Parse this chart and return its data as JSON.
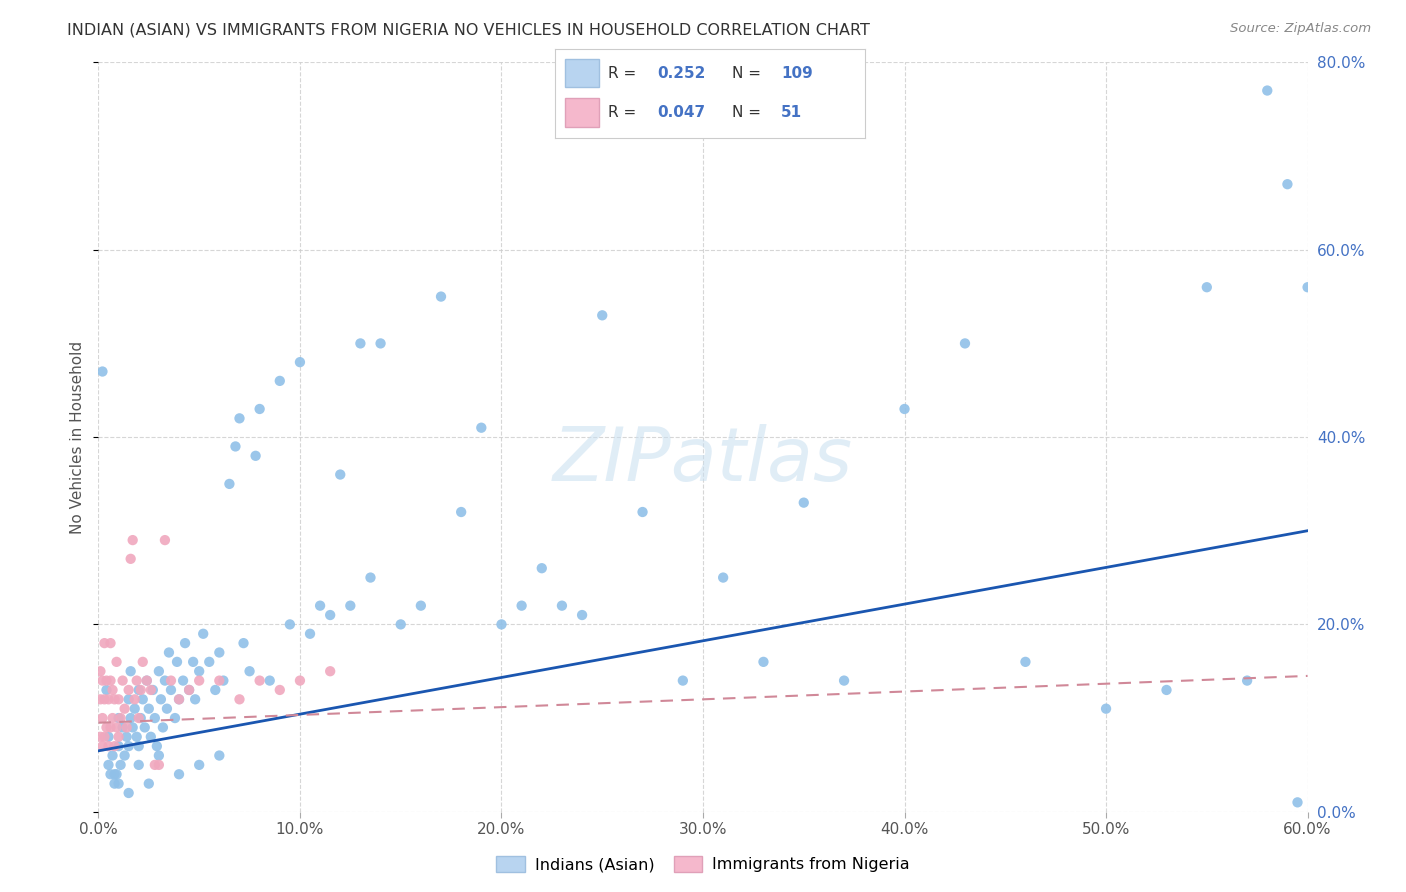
{
  "title": "INDIAN (ASIAN) VS IMMIGRANTS FROM NIGERIA NO VEHICLES IN HOUSEHOLD CORRELATION CHART",
  "source": "Source: ZipAtlas.com",
  "ylabel_label": "No Vehicles in Household",
  "watermark": "ZIPatlas",
  "xlim": [
    0.0,
    0.6
  ],
  "ylim": [
    0.0,
    0.8
  ],
  "xticks": [
    0.0,
    0.1,
    0.2,
    0.3,
    0.4,
    0.5,
    0.6
  ],
  "xtick_labels": [
    "0.0%",
    "10.0%",
    "20.0%",
    "30.0%",
    "40.0%",
    "50.0%",
    "60.0%"
  ],
  "yticks": [
    0.0,
    0.2,
    0.4,
    0.6,
    0.8
  ],
  "ytick_labels": [
    "0.0%",
    "20.0%",
    "40.0%",
    "60.0%",
    "80.0%"
  ],
  "scatter_blue_color": "#90c0e8",
  "scatter_pink_color": "#f0a8be",
  "line_blue_color": "#1a56b0",
  "line_pink_color": "#d08898",
  "legend_blue_fill": "#b8d4f0",
  "legend_pink_fill": "#f5b8cc",
  "blue_R": "0.252",
  "blue_N": "109",
  "pink_R": "0.047",
  "pink_N": "51",
  "blue_label": "Indians (Asian)",
  "pink_label": "Immigrants from Nigeria",
  "blue_line": [
    0.0,
    0.6,
    0.065,
    0.3
  ],
  "pink_line": [
    0.0,
    0.6,
    0.095,
    0.145
  ],
  "background_color": "#ffffff",
  "grid_color": "#cccccc",
  "blue_x": [
    0.005,
    0.005,
    0.007,
    0.008,
    0.009,
    0.01,
    0.01,
    0.011,
    0.012,
    0.013,
    0.014,
    0.015,
    0.015,
    0.016,
    0.016,
    0.017,
    0.018,
    0.019,
    0.02,
    0.02,
    0.021,
    0.022,
    0.023,
    0.024,
    0.025,
    0.026,
    0.027,
    0.028,
    0.029,
    0.03,
    0.031,
    0.032,
    0.033,
    0.034,
    0.035,
    0.036,
    0.038,
    0.039,
    0.04,
    0.042,
    0.043,
    0.045,
    0.047,
    0.048,
    0.05,
    0.052,
    0.055,
    0.058,
    0.06,
    0.062,
    0.065,
    0.068,
    0.07,
    0.072,
    0.075,
    0.078,
    0.08,
    0.085,
    0.09,
    0.095,
    0.1,
    0.105,
    0.11,
    0.115,
    0.12,
    0.125,
    0.13,
    0.135,
    0.14,
    0.15,
    0.16,
    0.17,
    0.18,
    0.19,
    0.2,
    0.21,
    0.22,
    0.23,
    0.24,
    0.25,
    0.27,
    0.29,
    0.31,
    0.33,
    0.35,
    0.37,
    0.4,
    0.43,
    0.46,
    0.5,
    0.53,
    0.55,
    0.57,
    0.58,
    0.59,
    0.595,
    0.6,
    0.002,
    0.004,
    0.006,
    0.008,
    0.01,
    0.015,
    0.02,
    0.025,
    0.03,
    0.04,
    0.05,
    0.06
  ],
  "blue_y": [
    0.05,
    0.08,
    0.06,
    0.03,
    0.04,
    0.07,
    0.1,
    0.05,
    0.09,
    0.06,
    0.08,
    0.12,
    0.07,
    0.1,
    0.15,
    0.09,
    0.11,
    0.08,
    0.13,
    0.07,
    0.1,
    0.12,
    0.09,
    0.14,
    0.11,
    0.08,
    0.13,
    0.1,
    0.07,
    0.15,
    0.12,
    0.09,
    0.14,
    0.11,
    0.17,
    0.13,
    0.1,
    0.16,
    0.12,
    0.14,
    0.18,
    0.13,
    0.16,
    0.12,
    0.15,
    0.19,
    0.16,
    0.13,
    0.17,
    0.14,
    0.35,
    0.39,
    0.42,
    0.18,
    0.15,
    0.38,
    0.43,
    0.14,
    0.46,
    0.2,
    0.48,
    0.19,
    0.22,
    0.21,
    0.36,
    0.22,
    0.5,
    0.25,
    0.5,
    0.2,
    0.22,
    0.55,
    0.32,
    0.41,
    0.2,
    0.22,
    0.26,
    0.22,
    0.21,
    0.53,
    0.32,
    0.14,
    0.25,
    0.16,
    0.33,
    0.14,
    0.43,
    0.5,
    0.16,
    0.11,
    0.13,
    0.56,
    0.14,
    0.77,
    0.67,
    0.01,
    0.56,
    0.47,
    0.13,
    0.04,
    0.04,
    0.03,
    0.02,
    0.05,
    0.03,
    0.06,
    0.04,
    0.05,
    0.06
  ],
  "pink_x": [
    0.001,
    0.001,
    0.001,
    0.002,
    0.002,
    0.002,
    0.003,
    0.003,
    0.003,
    0.004,
    0.004,
    0.005,
    0.005,
    0.006,
    0.006,
    0.006,
    0.007,
    0.007,
    0.008,
    0.008,
    0.009,
    0.009,
    0.01,
    0.01,
    0.011,
    0.012,
    0.013,
    0.014,
    0.015,
    0.016,
    0.017,
    0.018,
    0.019,
    0.02,
    0.021,
    0.022,
    0.024,
    0.026,
    0.028,
    0.03,
    0.033,
    0.036,
    0.04,
    0.045,
    0.05,
    0.06,
    0.07,
    0.08,
    0.09,
    0.1,
    0.115
  ],
  "pink_y": [
    0.08,
    0.12,
    0.15,
    0.07,
    0.1,
    0.14,
    0.08,
    0.12,
    0.18,
    0.09,
    0.14,
    0.07,
    0.12,
    0.09,
    0.14,
    0.18,
    0.1,
    0.13,
    0.07,
    0.12,
    0.09,
    0.16,
    0.08,
    0.12,
    0.1,
    0.14,
    0.11,
    0.09,
    0.13,
    0.27,
    0.29,
    0.12,
    0.14,
    0.1,
    0.13,
    0.16,
    0.14,
    0.13,
    0.05,
    0.05,
    0.29,
    0.14,
    0.12,
    0.13,
    0.14,
    0.14,
    0.12,
    0.14,
    0.13,
    0.14,
    0.15
  ]
}
